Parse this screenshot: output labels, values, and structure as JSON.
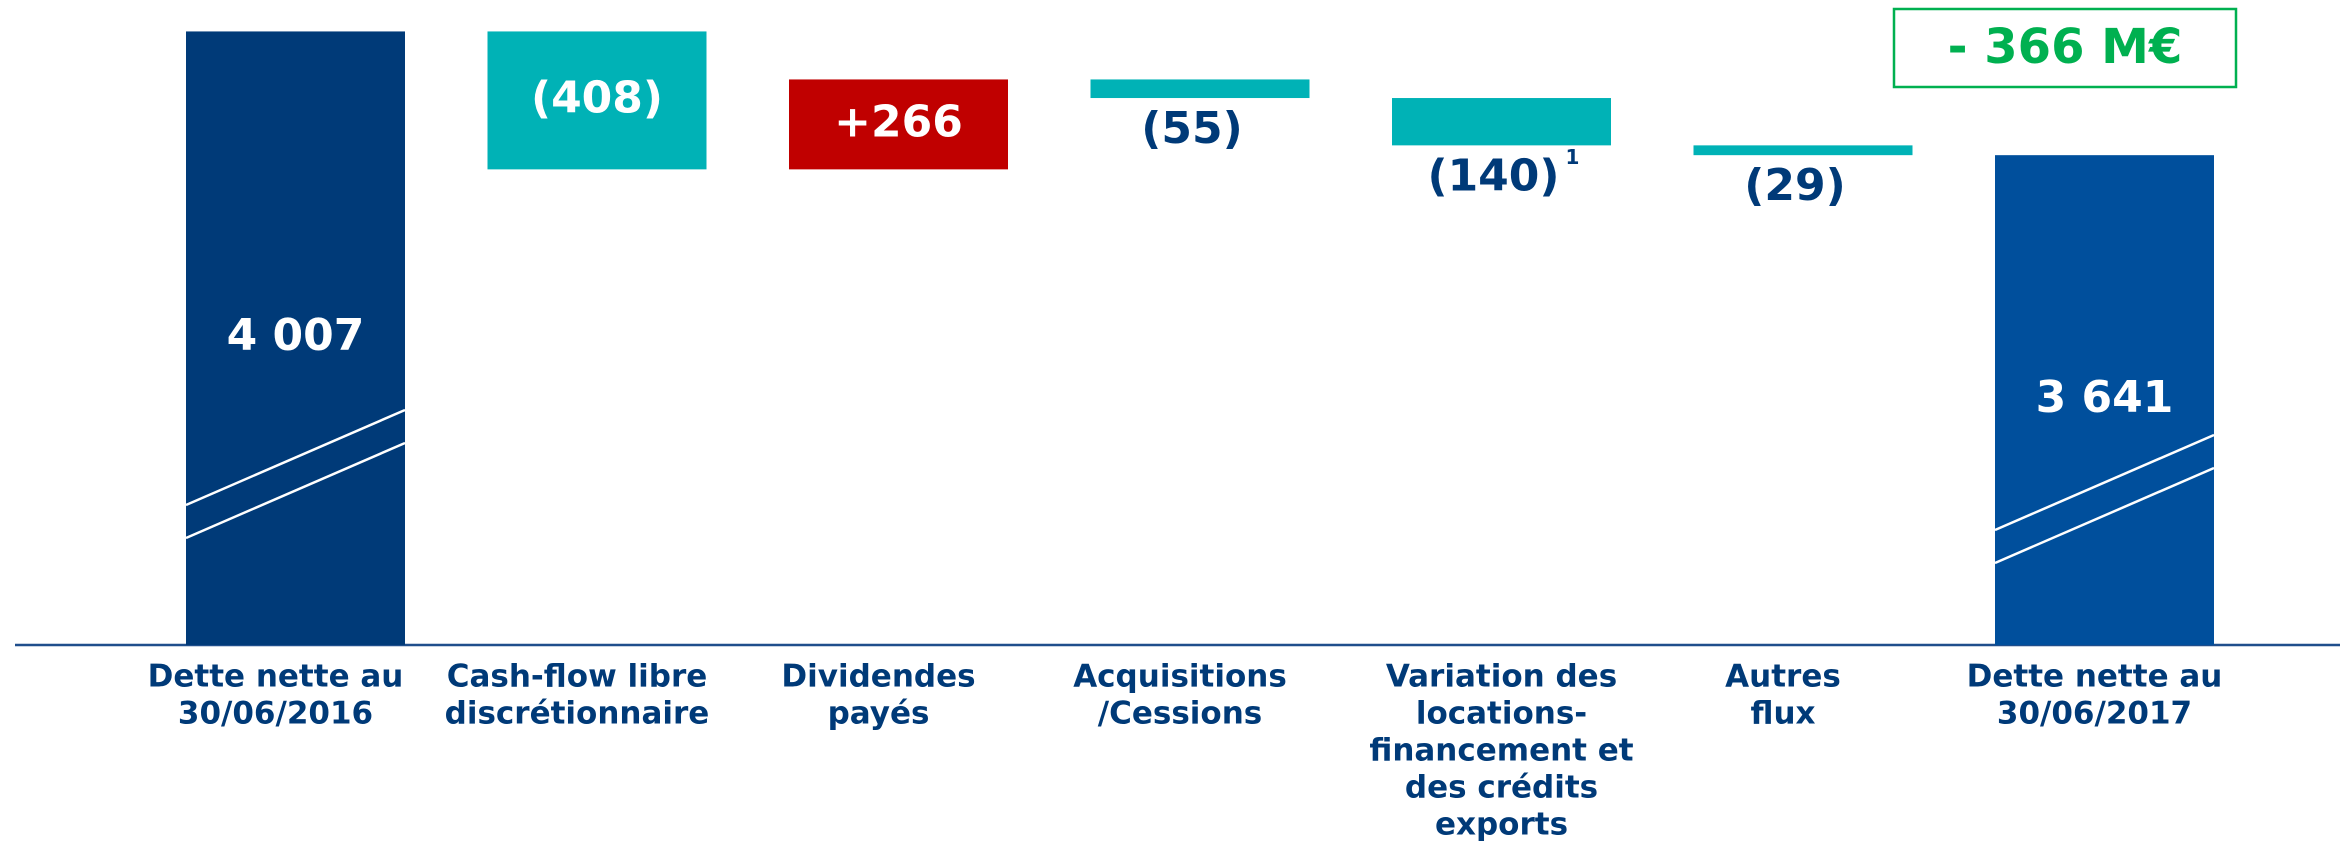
{
  "chart_data": {
    "type": "waterfall",
    "categories": [
      [
        "Dette nette au",
        "30/06/2016"
      ],
      [
        "Cash-flow libre",
        "discrétionnaire"
      ],
      [
        "Dividendes",
        "payés"
      ],
      [
        "Acquisitions",
        "/Cessions"
      ],
      [
        "Variation des",
        "locations-",
        "financement et",
        "des crédits",
        "exports"
      ],
      [
        "Autres",
        "flux"
      ],
      [
        "Dette nette au",
        "30/06/2017"
      ]
    ],
    "values": [
      4007,
      -408,
      266,
      -55,
      -140,
      -29,
      3641
    ],
    "value_labels": [
      "4 007",
      "(408)",
      "+266",
      "(55)",
      "(140)",
      "(29)",
      "3 641"
    ],
    "colors": [
      "#003a78",
      "#00b2b6",
      "#c00000",
      "#00b2b6",
      "#00b2b6",
      "#00b2b6",
      "#004f9c"
    ],
    "ylim": [
      2192,
      4100
    ],
    "footnote": {
      "index": 4,
      "text": "1"
    },
    "annotation": "- 366 M€"
  }
}
